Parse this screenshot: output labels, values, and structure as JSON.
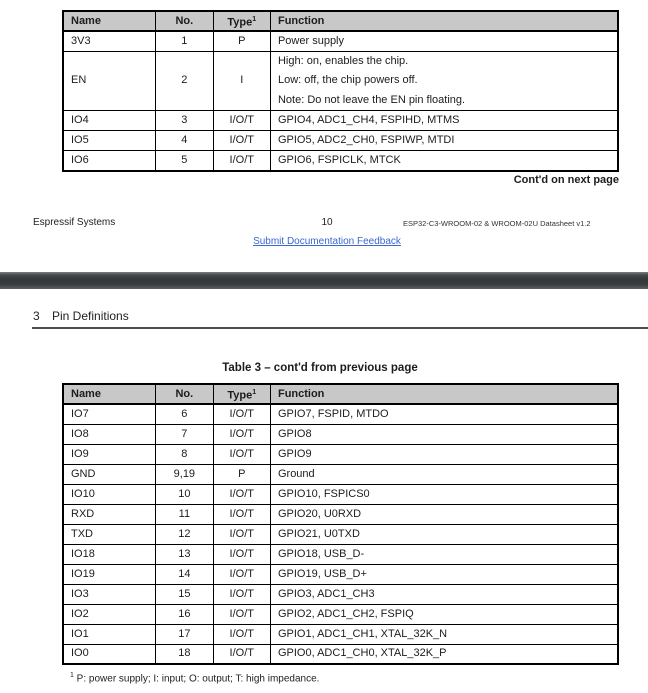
{
  "colors": {
    "link_blue": "#3a67d2",
    "table_header_bg": "#c8c8c8",
    "page_break_bar": "#35393b"
  },
  "headers": {
    "name": "Name",
    "no": "No.",
    "type": "Type",
    "type_sup": "1",
    "function": "Function"
  },
  "page1": {
    "table_rows": [
      {
        "name": "3V3",
        "no": "1",
        "type": "P",
        "function": "Power supply"
      },
      {
        "name": "EN",
        "no": "2",
        "type": "I",
        "function_lines": [
          "High: on, enables the chip.",
          "Low: off, the chip powers off.",
          "Note: Do not leave the EN pin floating."
        ]
      },
      {
        "name": "IO4",
        "no": "3",
        "type": "I/O/T",
        "function": "GPIO4, ADC1_CH4, FSPIHD, MTMS"
      },
      {
        "name": "IO5",
        "no": "4",
        "type": "I/O/T",
        "function": "GPIO5, ADC2_CH0, FSPIWP, MTDI"
      },
      {
        "name": "IO6",
        "no": "5",
        "type": "I/O/T",
        "function": "GPIO6, FSPICLK, MTCK"
      }
    ],
    "contd_note": "Cont'd on next page",
    "footer": {
      "company": "Espressif Systems",
      "page_number": "10",
      "doc_title": "ESP32-C3-WROOM-02 & WROOM-02U Datasheet v1.2",
      "feedback_link": "Submit Documentation Feedback"
    }
  },
  "page2": {
    "section": {
      "number": "3",
      "title": "Pin Definitions"
    },
    "caption": "Table 3 – cont'd from previous page",
    "table_rows": [
      {
        "name": "IO7",
        "no": "6",
        "type": "I/O/T",
        "function": "GPIO7, FSPID, MTDO"
      },
      {
        "name": "IO8",
        "no": "7",
        "type": "I/O/T",
        "function": "GPIO8"
      },
      {
        "name": "IO9",
        "no": "8",
        "type": "I/O/T",
        "function": "GPIO9"
      },
      {
        "name": "GND",
        "no": "9,19",
        "type": "P",
        "function": "Ground"
      },
      {
        "name": "IO10",
        "no": "10",
        "type": "I/O/T",
        "function": "GPIO10, FSPICS0"
      },
      {
        "name": "RXD",
        "no": "11",
        "type": "I/O/T",
        "function": "GPIO20, U0RXD"
      },
      {
        "name": "TXD",
        "no": "12",
        "type": "I/O/T",
        "function": "GPIO21, U0TXD"
      },
      {
        "name": "IO18",
        "no": "13",
        "type": "I/O/T",
        "function": "GPIO18, USB_D-"
      },
      {
        "name": "IO19",
        "no": "14",
        "type": "I/O/T",
        "function": "GPIO19, USB_D+"
      },
      {
        "name": "IO3",
        "no": "15",
        "type": "I/O/T",
        "function": "GPIO3, ADC1_CH3"
      },
      {
        "name": "IO2",
        "no": "16",
        "type": "I/O/T",
        "function": "GPIO2, ADC1_CH2, FSPIQ"
      },
      {
        "name": "IO1",
        "no": "17",
        "type": "I/O/T",
        "function": "GPIO1, ADC1_CH1, XTAL_32K_N"
      },
      {
        "name": "IO0",
        "no": "18",
        "type": "I/O/T",
        "function": "GPIO0, ADC1_CH0, XTAL_32K_P"
      }
    ],
    "footnote": {
      "sup": "1",
      "text": " P: power supply; I: input; O: output; T: high impedance."
    }
  }
}
